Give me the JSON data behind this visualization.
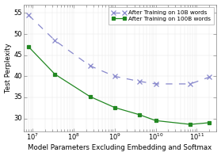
{
  "title": "",
  "xlabel": "Model Parameters Excluding Embedding and Softmax",
  "ylabel": "Test Perplexity",
  "ylim": [
    27,
    57
  ],
  "yticks": [
    30,
    35,
    40,
    45,
    50,
    55
  ],
  "xlim_log": [
    6000000.0,
    300000000000.0
  ],
  "line1_label": "After Training on 10B words",
  "line1_color": "#8888cc",
  "line1_x": [
    8000000.0,
    35000000.0,
    250000000.0,
    1000000000.0,
    4000000000.0,
    10000000000.0,
    70000000000.0,
    200000000000.0
  ],
  "line1_y": [
    54.5,
    48.5,
    42.5,
    40.0,
    38.8,
    38.2,
    38.2,
    39.8
  ],
  "line1_marker": "x",
  "line1_linestyle": "--",
  "line2_label": "After Training on 100B words",
  "line2_color": "#228822",
  "line2_x": [
    8000000.0,
    35000000.0,
    250000000.0,
    1000000000.0,
    4000000000.0,
    10000000000.0,
    70000000000.0,
    200000000000.0
  ],
  "line2_y": [
    47.0,
    40.5,
    35.2,
    32.6,
    30.9,
    29.5,
    28.6,
    29.0
  ],
  "line2_marker": "s",
  "line2_linestyle": "-",
  "background_color": "#ffffff",
  "plot_bg_color": "#ffffff",
  "legend_fontsize": 5.2,
  "axis_label_fontsize": 6.2,
  "tick_fontsize": 6.0
}
